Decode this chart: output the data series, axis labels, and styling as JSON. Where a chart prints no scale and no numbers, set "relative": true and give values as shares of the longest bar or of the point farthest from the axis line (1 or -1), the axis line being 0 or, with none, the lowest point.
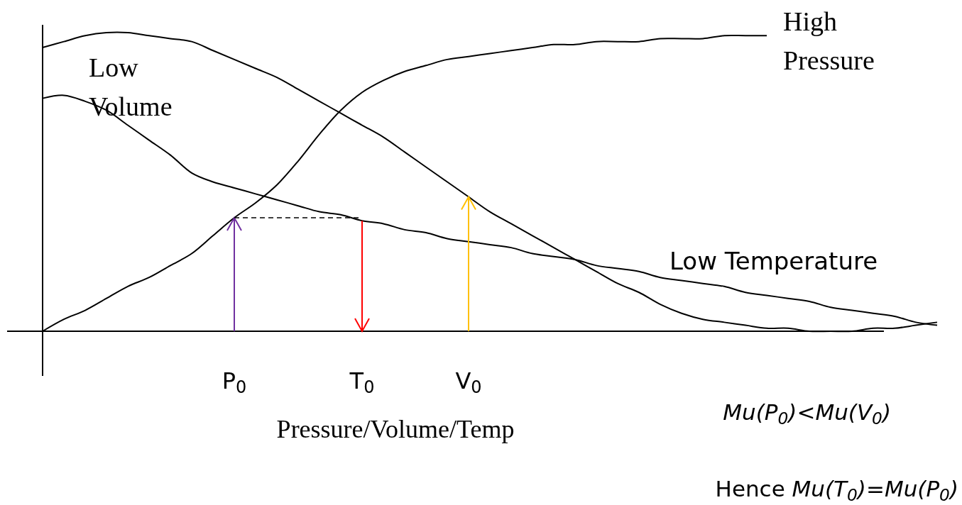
{
  "chart_data": {
    "type": "line",
    "relative": true,
    "xlabel": "Pressure/Volume/Temp",
    "categories": [
      null,
      null,
      null,
      null,
      null,
      null,
      null,
      null,
      null,
      "P$_{0}$",
      null,
      null,
      null,
      null,
      null,
      "T$_{0}$",
      null,
      null,
      null,
      null,
      "V$_{0}$",
      null,
      null,
      null,
      null,
      null,
      null,
      null,
      null,
      null,
      null,
      null,
      null,
      null,
      null,
      null,
      null,
      null,
      null,
      null,
      null,
      null,
      null,
      null
    ],
    "marker": "none",
    "line_style": "solid",
    "series": [
      {
        "name": "Low Volume",
        "color": "#000000",
        "values": [
          0.95,
          0.97,
          0.99,
          1,
          1,
          0.99,
          0.98,
          0.97,
          0.94,
          0.91,
          0.88,
          0.85,
          0.81,
          0.77,
          0.73,
          0.69,
          0.65,
          0.6,
          0.55,
          0.5,
          0.45,
          0.4,
          0.36,
          0.32,
          0.28,
          0.24,
          0.2,
          0.16,
          0.13,
          0.09,
          0.06,
          0.04,
          0.03,
          0.02,
          0.01,
          0.01,
          0,
          0,
          0,
          0.01,
          0.01,
          0.02,
          0.03,
          null
        ]
      },
      {
        "name": "High Pressure",
        "color": "#000000",
        "values": [
          0,
          0.04,
          0.07,
          0.11,
          0.15,
          0.18,
          0.22,
          0.26,
          0.32,
          0.38,
          0.43,
          0.49,
          0.57,
          0.66,
          0.74,
          0.8,
          0.84,
          0.87,
          0.89,
          0.91,
          0.92,
          0.93,
          0.94,
          0.95,
          0.96,
          0.96,
          0.97,
          0.97,
          0.97,
          0.98,
          0.98,
          0.98,
          0.99,
          0.99,
          0.99,
          null,
          null,
          null,
          null,
          null,
          null,
          null,
          null,
          null
        ]
      },
      {
        "name": "Low Temperature",
        "color": "#000000",
        "values": [
          0.78,
          0.79,
          0.77,
          0.74,
          0.69,
          0.64,
          0.59,
          0.53,
          0.5,
          0.48,
          0.46,
          0.44,
          0.42,
          0.4,
          0.39,
          0.37,
          0.36,
          0.34,
          0.33,
          0.31,
          0.3,
          0.29,
          0.28,
          0.26,
          0.25,
          0.24,
          0.22,
          0.21,
          0.2,
          0.18,
          0.17,
          0.16,
          0.15,
          0.13,
          0.12,
          0.11,
          0.1,
          0.08,
          0.07,
          0.06,
          0.05,
          0.03,
          0.02,
          null
        ]
      }
    ],
    "annotations": [
      "Mu(P$_{0}$)<Mu(V$_{0}$)",
      "Hence Mu(T$_{0}$)=Mu(P$_{0}$)"
    ]
  }
}
